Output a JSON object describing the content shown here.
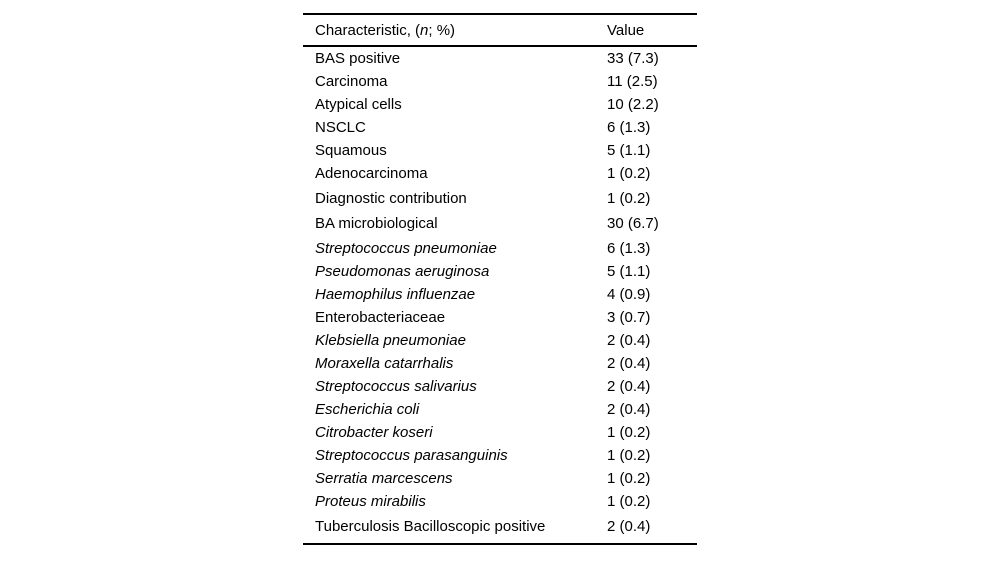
{
  "page": {
    "background_color": "#ffffff",
    "text_color": "#000000",
    "rule_color": "#000000"
  },
  "table": {
    "header": {
      "characteristic_prefix": "Characteristic, (",
      "characteristic_italic_n": "n",
      "characteristic_suffix": "; %)",
      "value_label": "Value"
    },
    "rows": [
      {
        "label": "BAS positive",
        "value": "33 (7.3)",
        "italic": false,
        "spacer_before": false
      },
      {
        "label": "Carcinoma",
        "value": "11 (2.5)",
        "italic": false,
        "spacer_before": false
      },
      {
        "label": "Atypical cells",
        "value": "10 (2.2)",
        "italic": false,
        "spacer_before": false
      },
      {
        "label": "NSCLC",
        "value": "6 (1.3)",
        "italic": false,
        "spacer_before": false
      },
      {
        "label": "Squamous",
        "value": "5 (1.1)",
        "italic": false,
        "spacer_before": false
      },
      {
        "label": "Adenocarcinoma",
        "value": "1 (0.2)",
        "italic": false,
        "spacer_before": false
      },
      {
        "label": "Diagnostic contribution",
        "value": "1 (0.2)",
        "italic": false,
        "spacer_before": true
      },
      {
        "label": "BA microbiological",
        "value": "30 (6.7)",
        "italic": false,
        "spacer_before": true
      },
      {
        "label": "Streptococcus pneumoniae",
        "value": "6 (1.3)",
        "italic": true,
        "spacer_before": true
      },
      {
        "label": "Pseudomonas aeruginosa",
        "value": "5 (1.1)",
        "italic": true,
        "spacer_before": false
      },
      {
        "label": "Haemophilus influenzae",
        "value": "4 (0.9)",
        "italic": true,
        "spacer_before": false
      },
      {
        "label": "Enterobacteriaceae",
        "value": "3 (0.7)",
        "italic": false,
        "spacer_before": false
      },
      {
        "label": "Klebsiella pneumoniae",
        "value": "2 (0.4)",
        "italic": true,
        "spacer_before": false
      },
      {
        "label": "Moraxella catarrhalis",
        "value": "2 (0.4)",
        "italic": true,
        "spacer_before": false
      },
      {
        "label": "Streptococcus salivarius",
        "value": "2 (0.4)",
        "italic": true,
        "spacer_before": false
      },
      {
        "label": "Escherichia coli",
        "value": "2 (0.4)",
        "italic": true,
        "spacer_before": false
      },
      {
        "label": "Citrobacter koseri",
        "value": "1 (0.2)",
        "italic": true,
        "spacer_before": false
      },
      {
        "label": "Streptococcus parasanguinis",
        "value": "1 (0.2)",
        "italic": true,
        "spacer_before": false
      },
      {
        "label": "Serratia marcescens",
        "value": "1 (0.2)",
        "italic": true,
        "spacer_before": false
      },
      {
        "label": "Proteus mirabilis",
        "value": "1 (0.2)",
        "italic": true,
        "spacer_before": false
      },
      {
        "label": "Tuberculosis Bacilloscopic positive",
        "value": "2 (0.4)",
        "italic": false,
        "spacer_before": true
      }
    ]
  }
}
